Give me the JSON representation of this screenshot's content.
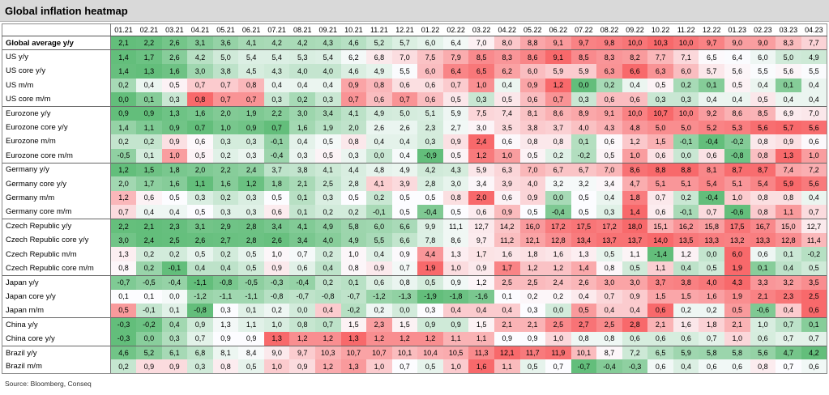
{
  "source": "Source: Bloomberg, Conseq",
  "colors": {
    "title_bg": "#D9D9D9",
    "scale_low": "#63BE7B",
    "scale_mid": "#FCFCFF",
    "scale_high": "#F8696B"
  },
  "chart_data": {
    "type": "heatmap",
    "title": "Global inflation heatmap",
    "color_scale": "per-row green (low) - white (median) - red (high)",
    "columns": [
      "01.21",
      "02.21",
      "03.21",
      "04.21",
      "05.21",
      "06.21",
      "07.21",
      "08.21",
      "09.21",
      "10.21",
      "11.21",
      "12.21",
      "01.22",
      "02.22",
      "03.22",
      "04.22",
      "05.22",
      "06.22",
      "07.22",
      "08.22",
      "09.22",
      "10.22",
      "11.22",
      "12.22",
      "01.23",
      "02.23",
      "03.23",
      "04.23"
    ],
    "groups": [
      {
        "rows": [
          {
            "label": "Global average y/y",
            "values": [
              "2,1",
              "2,2",
              "2,6",
              "3,1",
              "3,6",
              "4,1",
              "4,2",
              "4,2",
              "4,3",
              "4,6",
              "5,2",
              "5,7",
              "6,0",
              "6,4",
              "7,0",
              "8,0",
              "8,8",
              "9,1",
              "9,7",
              "9,8",
              "10,0",
              "10,3",
              "10,0",
              "9,7",
              "9,0",
              "9,0",
              "8,3",
              "7,7"
            ]
          }
        ]
      },
      {
        "rows": [
          {
            "label": "US y/y",
            "values": [
              "1,4",
              "1,7",
              "2,6",
              "4,2",
              "5,0",
              "5,4",
              "5,4",
              "5,3",
              "5,4",
              "6,2",
              "6,8",
              "7,0",
              "7,5",
              "7,9",
              "8,5",
              "8,3",
              "8,6",
              "9,1",
              "8,5",
              "8,3",
              "8,2",
              "7,7",
              "7,1",
              "6,5",
              "6,4",
              "6,0",
              "5,0",
              "4,9"
            ]
          },
          {
            "label": "US core y/y",
            "values": [
              "1,4",
              "1,3",
              "1,6",
              "3,0",
              "3,8",
              "4,5",
              "4,3",
              "4,0",
              "4,0",
              "4,6",
              "4,9",
              "5,5",
              "6,0",
              "6,4",
              "6,5",
              "6,2",
              "6,0",
              "5,9",
              "5,9",
              "6,3",
              "6,6",
              "6,3",
              "6,0",
              "5,7",
              "5,6",
              "5,5",
              "5,6",
              "5,5"
            ]
          },
          {
            "label": "US m/m",
            "values": [
              "0,2",
              "0,4",
              "0,5",
              "0,7",
              "0,7",
              "0,8",
              "0,4",
              "0,4",
              "0,4",
              "0,9",
              "0,8",
              "0,6",
              "0,6",
              "0,7",
              "1,0",
              "0,4",
              "0,9",
              "1,2",
              "0,0",
              "0,2",
              "0,4",
              "0,5",
              "0,2",
              "0,1",
              "0,5",
              "0,4",
              "0,1",
              "0,4"
            ]
          },
          {
            "label": "US core m/m",
            "values": [
              "0,0",
              "0,1",
              "0,3",
              "0,8",
              "0,7",
              "0,7",
              "0,3",
              "0,2",
              "0,3",
              "0,7",
              "0,6",
              "0,7",
              "0,6",
              "0,5",
              "0,3",
              "0,5",
              "0,6",
              "0,7",
              "0,3",
              "0,6",
              "0,6",
              "0,3",
              "0,3",
              "0,4",
              "0,4",
              "0,5",
              "0,4",
              "0,4"
            ]
          }
        ]
      },
      {
        "rows": [
          {
            "label": "Eurozone y/y",
            "values": [
              "0,9",
              "0,9",
              "1,3",
              "1,6",
              "2,0",
              "1,9",
              "2,2",
              "3,0",
              "3,4",
              "4,1",
              "4,9",
              "5,0",
              "5,1",
              "5,9",
              "7,5",
              "7,4",
              "8,1",
              "8,6",
              "8,9",
              "9,1",
              "10,0",
              "10,7",
              "10,0",
              "9,2",
              "8,6",
              "8,5",
              "6,9",
              "7,0"
            ]
          },
          {
            "label": "Eurozone core y/y",
            "values": [
              "1,4",
              "1,1",
              "0,9",
              "0,7",
              "1,0",
              "0,9",
              "0,7",
              "1,6",
              "1,9",
              "2,0",
              "2,6",
              "2,6",
              "2,3",
              "2,7",
              "3,0",
              "3,5",
              "3,8",
              "3,7",
              "4,0",
              "4,3",
              "4,8",
              "5,0",
              "5,0",
              "5,2",
              "5,3",
              "5,6",
              "5,7",
              "5,6"
            ]
          },
          {
            "label": "Eurozone m/m",
            "values": [
              "0,2",
              "0,2",
              "0,9",
              "0,6",
              "0,3",
              "0,3",
              "-0,1",
              "0,4",
              "0,5",
              "0,8",
              "0,4",
              "0,4",
              "0,3",
              "0,9",
              "2,4",
              "0,6",
              "0,8",
              "0,8",
              "0,1",
              "0,6",
              "1,2",
              "1,5",
              "-0,1",
              "-0,4",
              "-0,2",
              "0,8",
              "0,9",
              "0,6"
            ]
          },
          {
            "label": "Eurozone core m/m",
            "values": [
              "-0,5",
              "0,1",
              "1,0",
              "0,5",
              "0,2",
              "0,3",
              "-0,4",
              "0,3",
              "0,5",
              "0,3",
              "0,0",
              "0,4",
              "-0,9",
              "0,5",
              "1,2",
              "1,0",
              "0,5",
              "0,2",
              "-0,2",
              "0,5",
              "1,0",
              "0,6",
              "0,0",
              "0,6",
              "-0,8",
              "0,8",
              "1,3",
              "1,0"
            ]
          }
        ]
      },
      {
        "rows": [
          {
            "label": "Germany y/y",
            "values": [
              "1,2",
              "1,5",
              "1,8",
              "2,0",
              "2,2",
              "2,4",
              "3,7",
              "3,8",
              "4,1",
              "4,4",
              "4,8",
              "4,9",
              "4,2",
              "4,3",
              "5,9",
              "6,3",
              "7,0",
              "6,7",
              "6,7",
              "7,0",
              "8,6",
              "8,8",
              "8,8",
              "8,1",
              "8,7",
              "8,7",
              "7,4",
              "7,2"
            ]
          },
          {
            "label": "Germany core y/y",
            "values": [
              "2,0",
              "1,7",
              "1,6",
              "1,1",
              "1,6",
              "1,2",
              "1,8",
              "2,1",
              "2,5",
              "2,8",
              "4,1",
              "3,9",
              "2,8",
              "3,0",
              "3,4",
              "3,9",
              "4,0",
              "3,2",
              "3,2",
              "3,4",
              "4,7",
              "5,1",
              "5,1",
              "5,4",
              "5,1",
              "5,4",
              "5,9",
              "5,6"
            ]
          },
          {
            "label": "Germany m/m",
            "values": [
              "1,2",
              "0,6",
              "0,5",
              "0,3",
              "0,2",
              "0,3",
              "0,5",
              "0,1",
              "0,3",
              "0,5",
              "0,2",
              "0,5",
              "0,5",
              "0,8",
              "2,0",
              "0,6",
              "0,9",
              "0,0",
              "0,5",
              "0,4",
              "1,8",
              "0,7",
              "0,2",
              "-0,4",
              "1,0",
              "0,8",
              "0,8",
              "0,4"
            ]
          },
          {
            "label": "Germany core m/m",
            "values": [
              "0,7",
              "0,4",
              "0,4",
              "0,5",
              "0,3",
              "0,3",
              "0,6",
              "0,1",
              "0,2",
              "0,2",
              "-0,1",
              "0,5",
              "-0,4",
              "0,5",
              "0,6",
              "0,9",
              "0,5",
              "-0,4",
              "0,5",
              "0,3",
              "1,4",
              "0,6",
              "-0,1",
              "0,7",
              "-0,6",
              "0,8",
              "1,1",
              "0,7"
            ]
          }
        ]
      },
      {
        "rows": [
          {
            "label": "Czech Republic y/y",
            "values": [
              "2,2",
              "2,1",
              "2,3",
              "3,1",
              "2,9",
              "2,8",
              "3,4",
              "4,1",
              "4,9",
              "5,8",
              "6,0",
              "6,6",
              "9,9",
              "11,1",
              "12,7",
              "14,2",
              "16,0",
              "17,2",
              "17,5",
              "17,2",
              "18,0",
              "15,1",
              "16,2",
              "15,8",
              "17,5",
              "16,7",
              "15,0",
              "12,7"
            ]
          },
          {
            "label": "Czech Republic core y/y",
            "values": [
              "3,0",
              "2,4",
              "2,5",
              "2,6",
              "2,7",
              "2,8",
              "2,6",
              "3,4",
              "4,0",
              "4,9",
              "5,5",
              "6,6",
              "7,8",
              "8,6",
              "9,7",
              "11,2",
              "12,1",
              "12,8",
              "13,4",
              "13,7",
              "13,7",
              "14,0",
              "13,5",
              "13,3",
              "13,2",
              "13,3",
              "12,8",
              "11,4"
            ]
          },
          {
            "label": "Czech Republic m/m",
            "values": [
              "1,3",
              "0,2",
              "0,2",
              "0,5",
              "0,2",
              "0,5",
              "1,0",
              "0,7",
              "0,2",
              "1,0",
              "0,4",
              "0,9",
              "4,4",
              "1,3",
              "1,7",
              "1,6",
              "1,8",
              "1,6",
              "1,3",
              "0,5",
              "1,1",
              "-1,4",
              "1,2",
              "0,0",
              "6,0",
              "0,6",
              "0,1",
              "-0,2"
            ]
          },
          {
            "label": "Czech Republic core m/m",
            "values": [
              "0,8",
              "0,2",
              "-0,1",
              "0,4",
              "0,4",
              "0,5",
              "0,9",
              "0,6",
              "0,4",
              "0,8",
              "0,9",
              "0,7",
              "1,9",
              "1,0",
              "0,9",
              "1,7",
              "1,2",
              "1,2",
              "1,4",
              "0,8",
              "0,5",
              "1,1",
              "0,4",
              "0,5",
              "1,9",
              "0,1",
              "0,4",
              "0,5"
            ]
          }
        ]
      },
      {
        "rows": [
          {
            "label": "Japan y/y",
            "values": [
              "-0,7",
              "-0,5",
              "-0,4",
              "-1,1",
              "-0,8",
              "-0,5",
              "-0,3",
              "-0,4",
              "0,2",
              "0,1",
              "0,6",
              "0,8",
              "0,5",
              "0,9",
              "1,2",
              "2,5",
              "2,5",
              "2,4",
              "2,6",
              "3,0",
              "3,0",
              "3,7",
              "3,8",
              "4,0",
              "4,3",
              "3,3",
              "3,2",
              "3,5"
            ]
          },
          {
            "label": "Japan core y/y",
            "values": [
              "0,1",
              "0,1",
              "0,0",
              "-1,2",
              "-1,1",
              "-1,1",
              "-0,8",
              "-0,7",
              "-0,8",
              "-0,7",
              "-1,2",
              "-1,3",
              "-1,9",
              "-1,8",
              "-1,6",
              "0,1",
              "0,2",
              "0,2",
              "0,4",
              "0,7",
              "0,9",
              "1,5",
              "1,5",
              "1,6",
              "1,9",
              "2,1",
              "2,3",
              "2,5"
            ]
          },
          {
            "label": "Japan m/m",
            "values": [
              "0,5",
              "-0,1",
              "0,1",
              "-0,8",
              "0,3",
              "0,1",
              "0,2",
              "0,0",
              "0,4",
              "-0,2",
              "0,2",
              "0,0",
              "0,3",
              "0,4",
              "0,4",
              "0,4",
              "0,3",
              "0,0",
              "0,5",
              "0,4",
              "0,4",
              "0,6",
              "0,2",
              "0,2",
              "0,5",
              "-0,6",
              "0,4",
              "0,6"
            ]
          }
        ]
      },
      {
        "rows": [
          {
            "label": "China y/y",
            "values": [
              "-0,3",
              "-0,2",
              "0,4",
              "0,9",
              "1,3",
              "1,1",
              "1,0",
              "0,8",
              "0,7",
              "1,5",
              "2,3",
              "1,5",
              "0,9",
              "0,9",
              "1,5",
              "2,1",
              "2,1",
              "2,5",
              "2,7",
              "2,5",
              "2,8",
              "2,1",
              "1,6",
              "1,8",
              "2,1",
              "1,0",
              "0,7",
              "0,1"
            ]
          },
          {
            "label": "China core y/y",
            "values": [
              "-0,3",
              "0,0",
              "0,3",
              "0,7",
              "0,9",
              "0,9",
              "1,3",
              "1,2",
              "1,2",
              "1,3",
              "1,2",
              "1,2",
              "1,2",
              "1,1",
              "1,1",
              "0,9",
              "0,9",
              "1,0",
              "0,8",
              "0,8",
              "0,6",
              "0,6",
              "0,6",
              "0,7",
              "1,0",
              "0,6",
              "0,7",
              "0,7"
            ]
          }
        ]
      },
      {
        "rows": [
          {
            "label": "Brazil y/y",
            "values": [
              "4,6",
              "5,2",
              "6,1",
              "6,8",
              "8,1",
              "8,4",
              "9,0",
              "9,7",
              "10,3",
              "10,7",
              "10,7",
              "10,1",
              "10,4",
              "10,5",
              "11,3",
              "12,1",
              "11,7",
              "11,9",
              "10,1",
              "8,7",
              "7,2",
              "6,5",
              "5,9",
              "5,8",
              "5,8",
              "5,6",
              "4,7",
              "4,2"
            ]
          },
          {
            "label": "Brazil m/m",
            "values": [
              "0,2",
              "0,9",
              "0,9",
              "0,3",
              "0,8",
              "0,5",
              "1,0",
              "0,9",
              "1,2",
              "1,3",
              "1,0",
              "0,7",
              "0,5",
              "1,0",
              "1,6",
              "1,1",
              "0,5",
              "0,7",
              "-0,7",
              "-0,4",
              "-0,3",
              "0,6",
              "0,4",
              "0,6",
              "0,6",
              "0,8",
              "0,7",
              "0,6"
            ]
          }
        ]
      }
    ]
  }
}
